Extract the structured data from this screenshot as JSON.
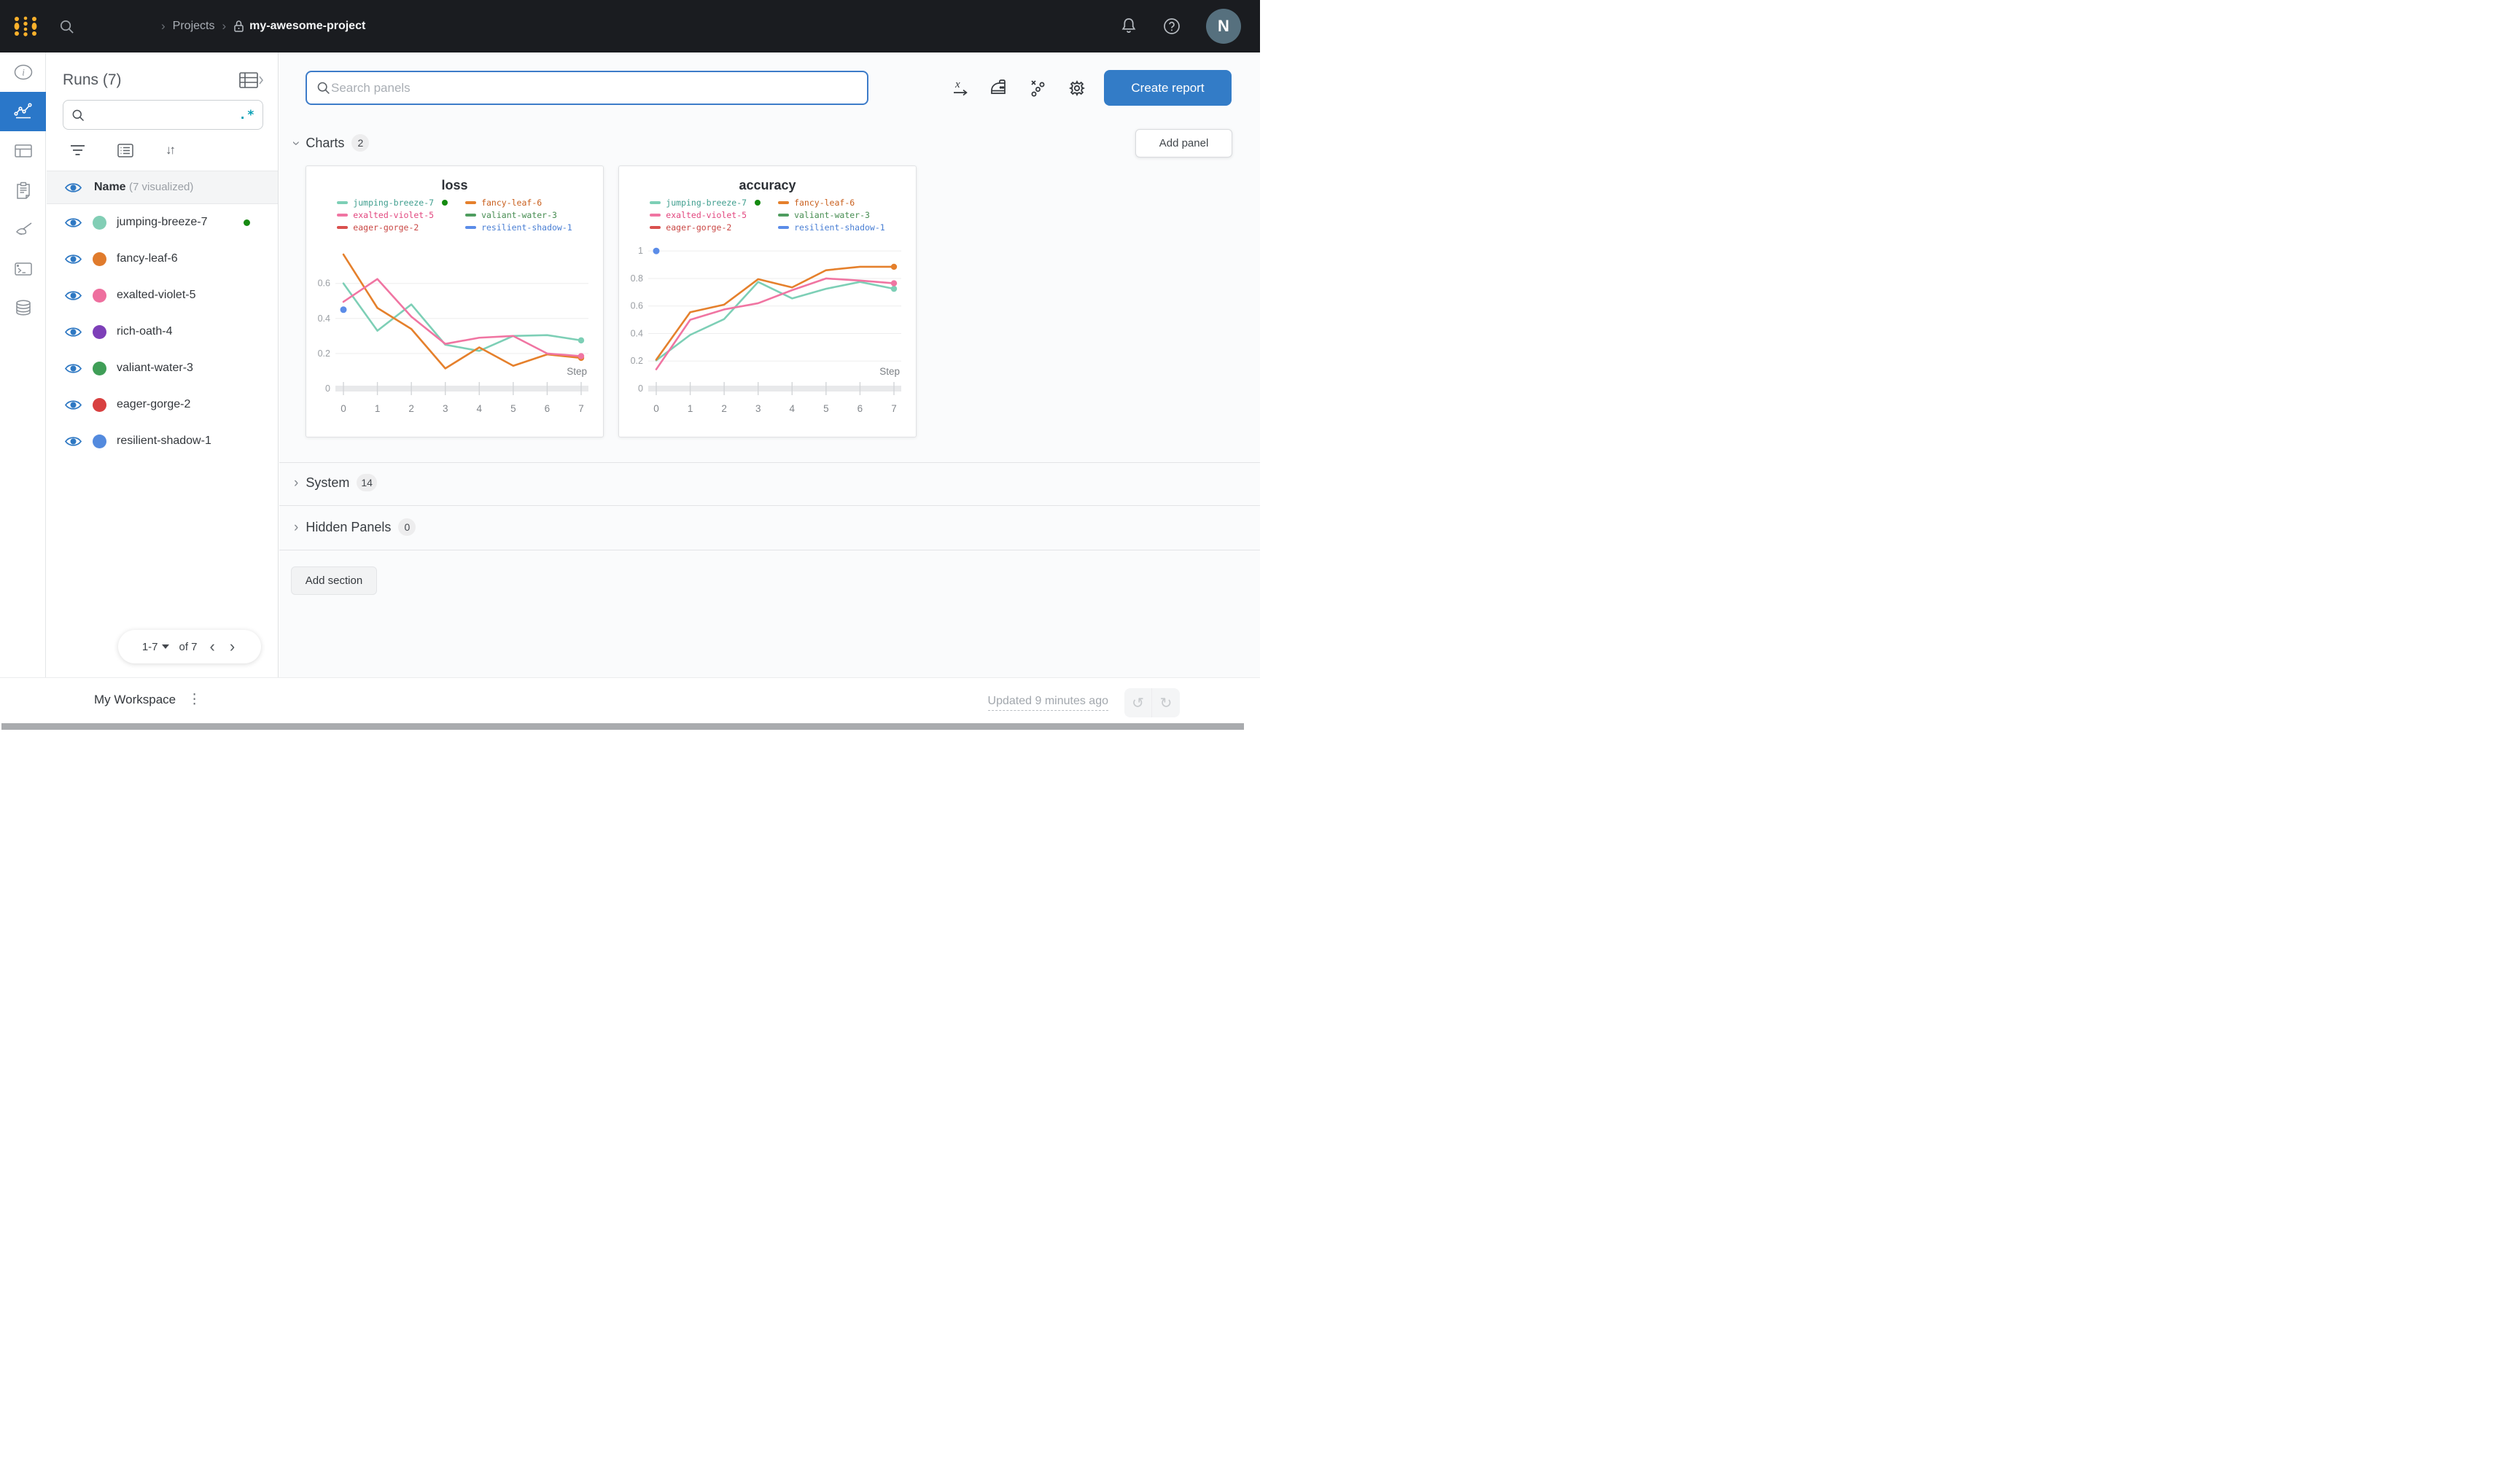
{
  "topbar": {
    "breadcrumb": {
      "projects": "Projects",
      "project": "my-awesome-project"
    },
    "avatar_initial": "N"
  },
  "nav_rail": {
    "items": [
      {
        "icon": "info-icon",
        "active": false
      },
      {
        "icon": "line-chart-icon",
        "active": true
      },
      {
        "icon": "table-icon",
        "active": false
      },
      {
        "icon": "reports-icon",
        "active": false
      },
      {
        "icon": "sweeps-broom-icon",
        "active": false
      },
      {
        "icon": "terminal-icon",
        "active": false
      },
      {
        "icon": "artifacts-database-icon",
        "active": false
      }
    ]
  },
  "runs_panel": {
    "title": "Runs (7)",
    "search_value": "",
    "regex_glyph": ".*",
    "sort_glyph": "↓↑",
    "header": {
      "name": "Name",
      "visualized": "(7 visualized)"
    },
    "runs": [
      {
        "name": "jumping-breeze-7",
        "color": "#82ceb5",
        "running": true
      },
      {
        "name": "fancy-leaf-6",
        "color": "#e07b2c",
        "running": false
      },
      {
        "name": "exalted-violet-5",
        "color": "#ee6f9e",
        "running": false
      },
      {
        "name": "rich-oath-4",
        "color": "#7d3fb8",
        "running": false
      },
      {
        "name": "valiant-water-3",
        "color": "#3f9e57",
        "running": false
      },
      {
        "name": "eager-gorge-2",
        "color": "#d84040",
        "running": false
      },
      {
        "name": "resilient-shadow-1",
        "color": "#538ade",
        "running": false
      }
    ],
    "pagination": {
      "range_label": "1-7",
      "of_label": "of 7",
      "prev_glyph": "‹",
      "next_glyph": "›"
    }
  },
  "main": {
    "search_placeholder": "Search panels",
    "create_report_label": "Create report",
    "add_panel_label": "Add panel",
    "add_section_label": "Add section",
    "sections": {
      "charts": {
        "label": "Charts",
        "count": "2"
      },
      "system": {
        "label": "System",
        "count": "14"
      },
      "hidden": {
        "label": "Hidden Panels",
        "count": "0"
      }
    }
  },
  "footer": {
    "workspace_label": "My Workspace",
    "updated_text": "Updated 9 minutes ago",
    "kebab_glyph": "⋮",
    "undo_glyph": "↺",
    "redo_glyph": "↻"
  },
  "chart_data": [
    {
      "type": "line",
      "title": "loss",
      "xlabel": "Step",
      "x": [
        0,
        1,
        2,
        3,
        4,
        5,
        6,
        7
      ],
      "xticks": [
        0,
        1,
        2,
        3,
        4,
        5,
        6,
        7
      ],
      "yticks": [
        0.2,
        0.4,
        0.6
      ],
      "ylim": [
        0,
        0.84
      ],
      "grid": true,
      "legend_position": "top",
      "series": [
        {
          "name": "jumping-breeze-7",
          "color": "#7dcfb6",
          "text_color": "#3f9e8e",
          "running": true,
          "end_dot": true,
          "values": [
            0.6,
            0.33,
            0.48,
            0.25,
            0.215,
            0.3,
            0.305,
            0.275
          ]
        },
        {
          "name": "fancy-leaf-6",
          "color": "#e5802c",
          "text_color": "#c95f1d",
          "end_dot": true,
          "values": [
            0.765,
            0.46,
            0.34,
            0.115,
            0.235,
            0.13,
            0.195,
            0.175
          ]
        },
        {
          "name": "exalted-violet-5",
          "color": "#f075a2",
          "text_color": "#e2477f",
          "end_dot": true,
          "values": [
            0.495,
            0.625,
            0.41,
            0.255,
            0.29,
            0.3,
            0.2,
            0.185
          ]
        },
        {
          "name": "valiant-water-3",
          "color": "#4f9d5f",
          "text_color": "#478d52",
          "values": []
        },
        {
          "name": "eager-gorge-2",
          "color": "#d9504e",
          "text_color": "#c94744",
          "values": []
        },
        {
          "name": "resilient-shadow-1",
          "color": "#5b8ce8",
          "text_color": "#4a7fd4",
          "values": [],
          "points": [
            [
              0,
              0.45
            ]
          ]
        }
      ]
    },
    {
      "type": "line",
      "title": "accuracy",
      "xlabel": "Step",
      "x": [
        0,
        1,
        2,
        3,
        4,
        5,
        6,
        7
      ],
      "xticks": [
        0,
        1,
        2,
        3,
        4,
        5,
        6,
        7
      ],
      "yticks": [
        0.2,
        0.4,
        0.6,
        0.8,
        1
      ],
      "ylim": [
        0,
        1.07
      ],
      "grid": true,
      "legend_position": "top",
      "series": [
        {
          "name": "jumping-breeze-7",
          "color": "#7dcfb6",
          "text_color": "#3f9e8e",
          "running": true,
          "end_dot": true,
          "values": [
            0.205,
            0.39,
            0.505,
            0.775,
            0.655,
            0.725,
            0.775,
            0.725
          ]
        },
        {
          "name": "fancy-leaf-6",
          "color": "#e5802c",
          "text_color": "#c95f1d",
          "end_dot": true,
          "values": [
            0.21,
            0.555,
            0.61,
            0.795,
            0.735,
            0.86,
            0.885,
            0.885
          ]
        },
        {
          "name": "exalted-violet-5",
          "color": "#f075a2",
          "text_color": "#e2477f",
          "end_dot": true,
          "values": [
            0.14,
            0.5,
            0.575,
            0.62,
            0.715,
            0.8,
            0.785,
            0.765
          ]
        },
        {
          "name": "valiant-water-3",
          "color": "#4f9d5f",
          "text_color": "#478d52",
          "values": []
        },
        {
          "name": "eager-gorge-2",
          "color": "#d9504e",
          "text_color": "#c94744",
          "values": []
        },
        {
          "name": "resilient-shadow-1",
          "color": "#5b8ce8",
          "text_color": "#4a7fd4",
          "values": [],
          "points": [
            [
              0,
              1.0
            ]
          ]
        }
      ]
    }
  ]
}
